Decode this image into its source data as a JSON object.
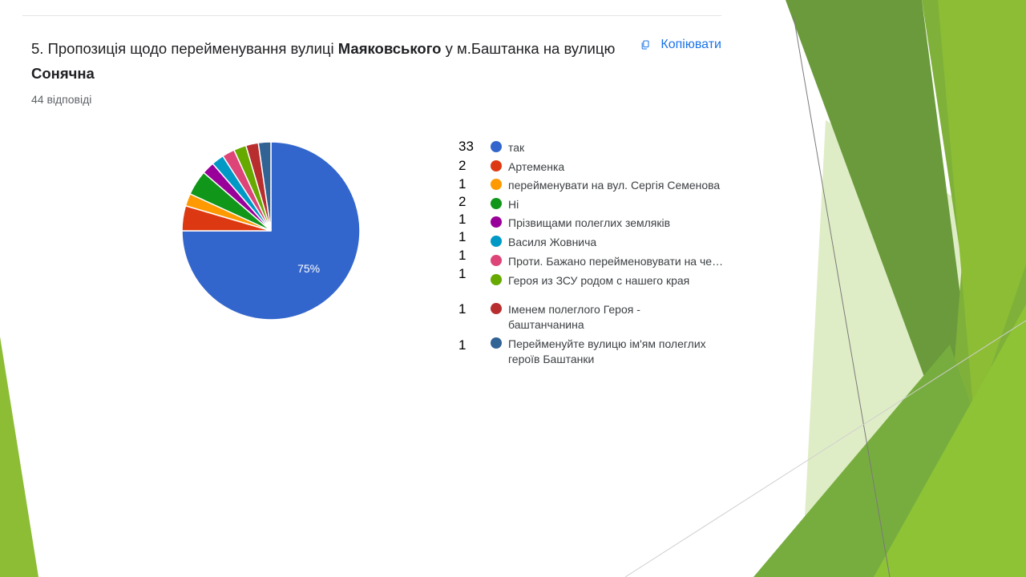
{
  "question": {
    "text_before": "5. Пропозиція щодо перейменування вулиці ",
    "bold1": "Маяковського",
    "text_mid": "  у м.Баштанка на вулицю  ",
    "bold2": "Сонячна",
    "responses": "44 відповіді",
    "copy_label": "Копіювати"
  },
  "colors": {
    "decor_green_dark": "#6a9a3c",
    "decor_green": "#8cbd35",
    "decor_green_light": "#c9e29c"
  },
  "chart_data": {
    "type": "pie",
    "slice_labels": [
      "75%"
    ],
    "series": [
      {
        "label": "так",
        "count": "33",
        "value": 33,
        "color": "#3366cc"
      },
      {
        "label": "Артеменка",
        "count": "2",
        "value": 2,
        "color": "#dc3912"
      },
      {
        "label": "перейменувати на вул. Сергія Семенова",
        "count": "1",
        "value": 1,
        "color": "#ff9900"
      },
      {
        "label": "Ні",
        "count": "2",
        "value": 2,
        "color": "#109618"
      },
      {
        "label": "Прізвищами полеглих земляків",
        "count": "1",
        "value": 1,
        "color": "#990099"
      },
      {
        "label": "Василя Жовнича",
        "count": "1",
        "value": 1,
        "color": "#0099c6"
      },
      {
        "label": "Проти. Бажано перейменовувати на честь",
        "count": "1",
        "value": 1,
        "color": "#dd4477"
      },
      {
        "label": "Героя из ЗСУ родом с нашего края",
        "count": "1",
        "value": 1,
        "color": "#66aa00"
      },
      {
        "label": "Іменем полеглого Героя - баштанчанина",
        "count": "1",
        "value": 1,
        "color": "#b82e2e"
      },
      {
        "label": "Перейменуйте вулицю ім'ям полеглих героїв Баштанки",
        "count": "1",
        "value": 1,
        "color": "#316395"
      }
    ]
  }
}
